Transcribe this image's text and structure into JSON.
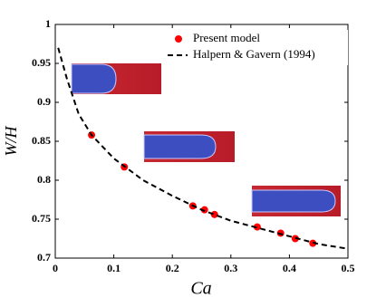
{
  "chart_data": {
    "type": "scatter",
    "xlabel": "Ca",
    "ylabel": "W/H",
    "xlim": [
      0,
      0.5
    ],
    "ylim": [
      0.7,
      1
    ],
    "xticks": [
      0,
      0.1,
      0.2,
      0.3,
      0.4,
      0.5
    ],
    "yticks": [
      0.7,
      0.75,
      0.8,
      0.85,
      0.9,
      0.95,
      1
    ],
    "legend": "upper right",
    "series": [
      {
        "name": "Present model",
        "type": "scatter",
        "color": "#ff0000",
        "x": [
          0.062,
          0.118,
          0.235,
          0.255,
          0.272,
          0.345,
          0.385,
          0.41,
          0.44
        ],
        "values": [
          0.858,
          0.817,
          0.767,
          0.762,
          0.756,
          0.74,
          0.732,
          0.725,
          0.719
        ]
      },
      {
        "name": "Halpern & Gavern (1994)",
        "type": "line",
        "color": "#000000",
        "x": [
          0.005,
          0.02,
          0.04,
          0.062,
          0.1,
          0.15,
          0.2,
          0.25,
          0.3,
          0.35,
          0.4,
          0.45,
          0.5
        ],
        "values": [
          0.97,
          0.93,
          0.885,
          0.858,
          0.828,
          0.8,
          0.78,
          0.762,
          0.748,
          0.738,
          0.728,
          0.718,
          0.712
        ]
      }
    ]
  }
}
